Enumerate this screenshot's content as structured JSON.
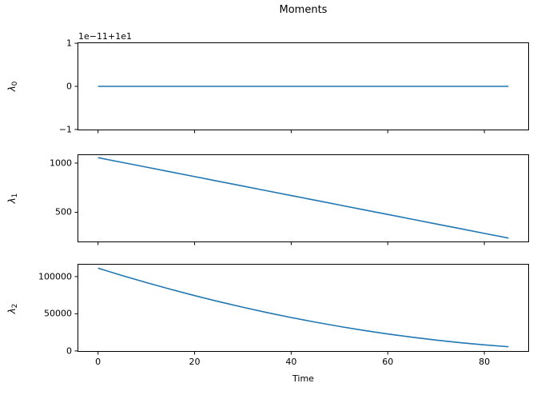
{
  "figure": {
    "background": "#ffffff",
    "text_color": "#000000",
    "line_color": "#1f77b4",
    "spine_color": "#000000"
  },
  "chart_data": {
    "type": "line",
    "title": "Moments",
    "xlabel": "Time",
    "grid": false,
    "legend": "none",
    "x": [
      0,
      5,
      10,
      15,
      20,
      25,
      30,
      35,
      40,
      45,
      50,
      55,
      60,
      65,
      70,
      75,
      80,
      85
    ],
    "xlim": [
      -4.25,
      89.25
    ],
    "xticks": [
      {
        "v": 0,
        "label": "0"
      },
      {
        "v": 20,
        "label": "20"
      },
      {
        "v": 40,
        "label": "40"
      },
      {
        "v": 60,
        "label": "60"
      },
      {
        "v": 80,
        "label": "80"
      }
    ],
    "subplots": [
      {
        "ylabel_base": "λ",
        "ylabel_sub": "0",
        "offset_text": "1e−11+1e1",
        "note": "constant value ≈ 1e1; plotted in offset units of 1e−11 about 1e1",
        "ylim": [
          -1.02,
          1.02
        ],
        "yticks": [
          {
            "v": 1,
            "label": "1"
          },
          {
            "v": 0,
            "label": "0"
          },
          {
            "v": -1,
            "label": "−1"
          }
        ],
        "show_xticklabels": false,
        "y": [
          0,
          0,
          0,
          0,
          0,
          0,
          0,
          0,
          0,
          0,
          0,
          0,
          0,
          0,
          0,
          0,
          0,
          0
        ]
      },
      {
        "ylabel_base": "λ",
        "ylabel_sub": "1",
        "offset_text": "",
        "ylim": [
          195,
          1089
        ],
        "yticks": [
          {
            "v": 1000,
            "label": "1000"
          },
          {
            "v": 500,
            "label": "500"
          }
        ],
        "show_xticklabels": false,
        "y": [
          1055,
          1006.9,
          958.8,
          910.7,
          862.6,
          814.5,
          766.4,
          718.3,
          670.2,
          622.1,
          574.0,
          525.9,
          477.8,
          429.7,
          381.6,
          333.5,
          285.4,
          237.3
        ]
      },
      {
        "ylabel_base": "λ",
        "ylabel_sub": "2",
        "offset_text": "",
        "ylim": [
          -1200,
          117100
        ],
        "yticks": [
          {
            "v": 100000,
            "label": "100000"
          },
          {
            "v": 50000,
            "label": "50000"
          },
          {
            "v": 0,
            "label": "0"
          }
        ],
        "show_xticklabels": true,
        "y": [
          111302,
          101385,
          91930,
          82937,
          74408,
          66341,
          58737,
          51595,
          44917,
          38701,
          32948,
          27657,
          22829,
          18464,
          14562,
          11122,
          8145,
          5631
        ]
      }
    ]
  }
}
